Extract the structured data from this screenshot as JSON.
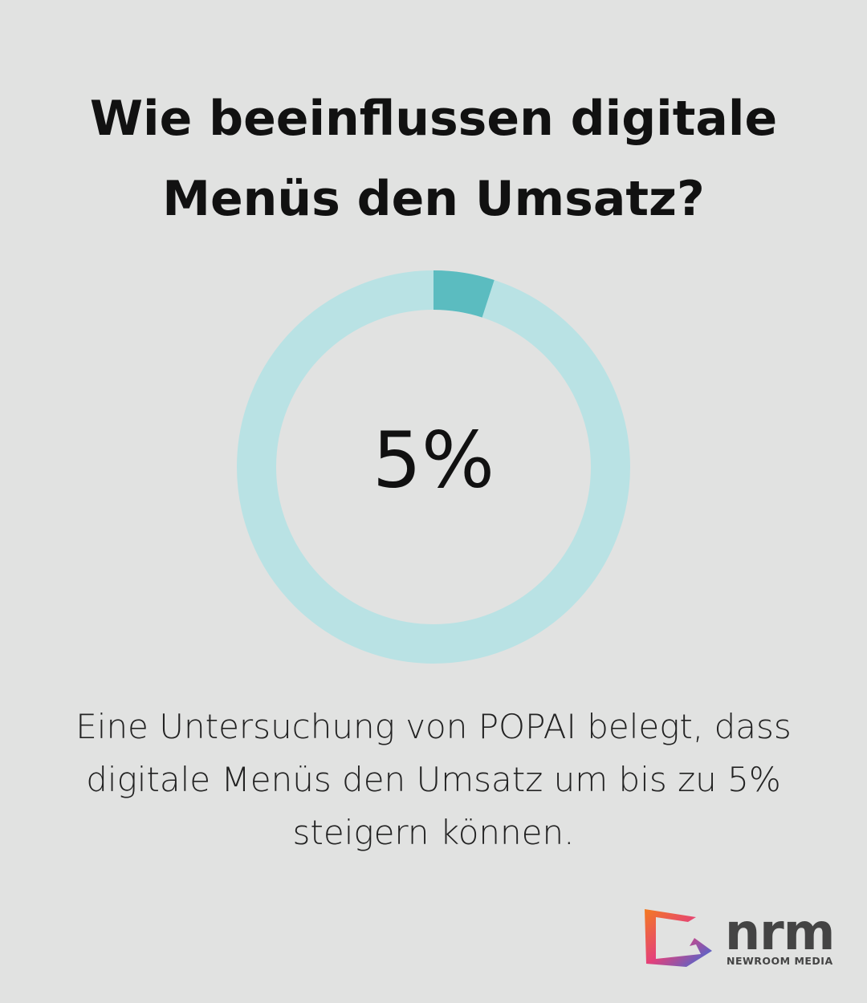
{
  "chart_data": {
    "type": "donut",
    "title": "Wie beeinflussen digitale Menüs den Umsatz?",
    "values": [
      5
    ],
    "value_labels": [
      "5%"
    ],
    "ylim": [
      0,
      100
    ],
    "color": "#5bbcc0",
    "track_color": "#b9e2e4"
  },
  "caption": "Eine Untersuchung von POPAI belegt, dass digitale Menüs den Umsatz um bis zu 5% steigern können.",
  "logo": {
    "mark": "nrm",
    "name": "NEWROOM MEDIA"
  }
}
